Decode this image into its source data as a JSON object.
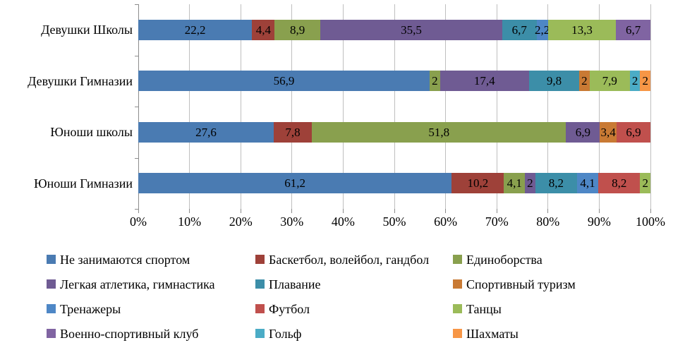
{
  "chart_data": {
    "type": "bar",
    "orientation": "horizontal",
    "stacked": true,
    "normalized_to_100": true,
    "title": "",
    "xlabel": "",
    "ylabel": "",
    "xlim": [
      0,
      100
    ],
    "x_tick_labels": [
      "0%",
      "10%",
      "20%",
      "30%",
      "40%",
      "50%",
      "60%",
      "70%",
      "80%",
      "90%",
      "100%"
    ],
    "grid": "vertical",
    "legend_position": "bottom",
    "decimal_separator": ",",
    "categories": [
      "Девушки Школы",
      "Девушки Гимназии",
      "Юноши школы",
      "Юноши Гимназии"
    ],
    "series": [
      {
        "name": "Не занимаются спортом",
        "color": "#4A7BB2",
        "values": [
          22.2,
          56.9,
          27.6,
          61.2
        ]
      },
      {
        "name": "Баскетбол, волейбол, гандбол",
        "color": "#9E4139",
        "values": [
          4.4,
          0,
          7.8,
          10.2
        ]
      },
      {
        "name": "Единоборства",
        "color": "#89A04E",
        "values": [
          8.9,
          2,
          51.8,
          4.1
        ]
      },
      {
        "name": "Легкая атлетика, гимнастика",
        "color": "#6F5B93",
        "values": [
          35.5,
          17.4,
          6.9,
          2
        ]
      },
      {
        "name": "Плавание",
        "color": "#3C8EA8",
        "values": [
          6.7,
          9.8,
          0,
          8.2
        ]
      },
      {
        "name": "Спортивный туризм",
        "color": "#C97A34",
        "values": [
          0,
          2,
          3.4,
          0
        ]
      },
      {
        "name": "Тренажеры",
        "color": "#4E87C6",
        "values": [
          2.2,
          0,
          0,
          4.1
        ]
      },
      {
        "name": "Футбол",
        "color": "#C0504D",
        "values": [
          0,
          0,
          6.9,
          8.2
        ]
      },
      {
        "name": "Танцы",
        "color": "#9BBB59",
        "values": [
          13.3,
          7.9,
          0,
          2
        ]
      },
      {
        "name": "Военно-спортивный клуб",
        "color": "#8064A2",
        "values": [
          6.7,
          0,
          0,
          0
        ]
      },
      {
        "name": "Гольф",
        "color": "#4BACC6",
        "values": [
          0,
          2,
          0,
          0
        ]
      },
      {
        "name": "Шахматы",
        "color": "#F79646",
        "values": [
          0,
          2,
          0,
          0
        ]
      }
    ]
  },
  "colors": {
    "gridline": "#bfbfbf",
    "axis": "#8c8c8c",
    "text": "#000000",
    "background": "#ffffff"
  }
}
